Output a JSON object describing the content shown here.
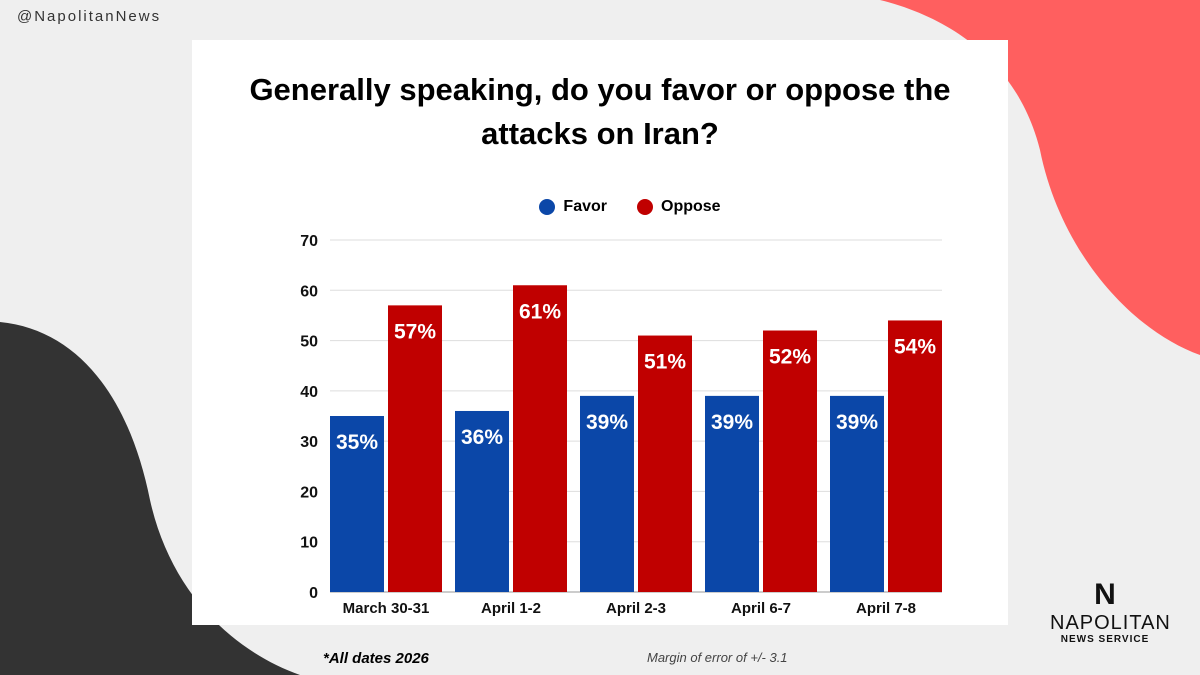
{
  "handle": "@NapolitanNews",
  "logo": {
    "mark": "N",
    "brand": "NAPOLITAN",
    "sub": "NEWS SERVICE"
  },
  "footnote": "*All dates 2026",
  "margin": "Margin of error of +/- 3.1",
  "colors": {
    "favor": "#0b47a8",
    "oppose": "#c00000",
    "accent": "#ff5f5f",
    "dark": "#333333"
  },
  "chart_data": {
    "type": "bar",
    "title": "Generally speaking, do you favor or oppose the attacks on Iran?",
    "categories": [
      "March 30-31",
      "April 1-2",
      "April 2-3",
      "April 6-7",
      "April 7-8"
    ],
    "series": [
      {
        "name": "Favor",
        "values": [
          35,
          36,
          39,
          39,
          39
        ]
      },
      {
        "name": "Oppose",
        "values": [
          57,
          61,
          51,
          52,
          54
        ]
      }
    ],
    "yticks": [
      0,
      10,
      20,
      30,
      40,
      50,
      60,
      70
    ],
    "ylim": [
      0,
      70
    ],
    "grid": true,
    "legend": "top-center",
    "xlabel": "",
    "ylabel": ""
  }
}
